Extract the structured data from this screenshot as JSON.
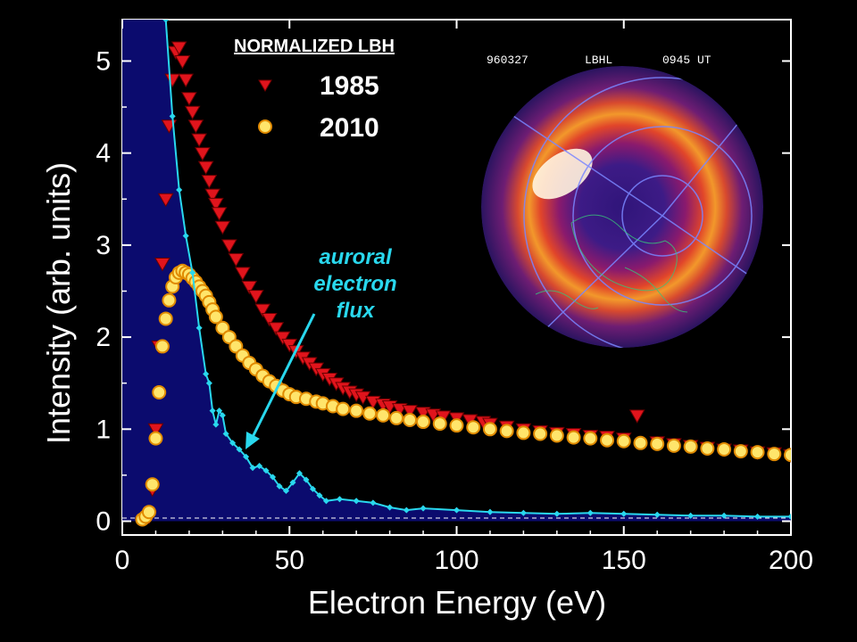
{
  "chart_data": {
    "type": "scatter",
    "xlabel": "Electron Energy (eV)",
    "ylabel": "Intensity (arb. units)",
    "xlim": [
      0,
      200
    ],
    "ylim": [
      -0.15,
      5.45
    ],
    "x_ticks": [
      "0",
      "50",
      "100",
      "150",
      "200"
    ],
    "y_ticks": [
      "0",
      "1",
      "2",
      "3",
      "4",
      "5"
    ],
    "legend_title": "NORMALIZED LBH",
    "legend_position": "top-left",
    "series": [
      {
        "name": "1985",
        "marker": "triangle-down",
        "color": "#e0141c",
        "x": [
          8,
          9,
          10,
          11,
          12,
          13,
          14,
          15,
          16,
          17,
          18,
          19,
          20,
          21,
          22,
          23,
          24,
          25,
          26,
          27,
          28,
          29,
          30,
          32,
          34,
          36,
          38,
          40,
          42,
          44,
          46,
          48,
          50,
          52,
          54,
          56,
          58,
          60,
          62,
          64,
          66,
          68,
          70,
          72,
          75,
          78,
          80,
          83,
          86,
          90,
          93,
          96,
          100,
          104,
          108,
          110,
          115,
          120,
          125,
          130,
          135,
          140,
          145,
          150,
          154,
          160,
          165,
          170,
          175,
          180,
          185,
          190,
          195,
          200
        ],
        "values": [
          0.05,
          0.35,
          1.0,
          1.9,
          2.8,
          3.5,
          4.3,
          4.8,
          5.1,
          5.15,
          5.0,
          4.8,
          4.6,
          4.45,
          4.3,
          4.15,
          4.0,
          3.85,
          3.7,
          3.55,
          3.45,
          3.35,
          3.2,
          3.0,
          2.85,
          2.7,
          2.55,
          2.45,
          2.3,
          2.2,
          2.1,
          2.0,
          1.92,
          1.85,
          1.78,
          1.72,
          1.66,
          1.6,
          1.55,
          1.5,
          1.45,
          1.41,
          1.38,
          1.35,
          1.3,
          1.27,
          1.25,
          1.22,
          1.2,
          1.18,
          1.16,
          1.14,
          1.12,
          1.1,
          1.08,
          1.06,
          1.03,
          1.0,
          0.98,
          0.96,
          0.95,
          0.93,
          0.92,
          0.9,
          1.15,
          0.86,
          0.84,
          0.82,
          0.8,
          0.78,
          0.77,
          0.75,
          0.74,
          0.72
        ]
      },
      {
        "name": "2010",
        "marker": "circle",
        "color": "#f7a21b",
        "x": [
          6,
          7,
          8,
          9,
          10,
          11,
          12,
          13,
          14,
          15,
          16,
          17,
          18,
          19,
          20,
          21,
          22,
          23,
          24,
          25,
          26,
          27,
          28,
          30,
          32,
          34,
          36,
          38,
          40,
          42,
          44,
          46,
          48,
          50,
          52,
          55,
          58,
          60,
          63,
          66,
          70,
          74,
          78,
          82,
          86,
          90,
          95,
          100,
          105,
          110,
          115,
          120,
          125,
          130,
          135,
          140,
          145,
          150,
          155,
          160,
          165,
          170,
          175,
          180,
          185,
          190,
          195,
          200
        ],
        "values": [
          0.02,
          0.05,
          0.1,
          0.4,
          0.9,
          1.4,
          1.9,
          2.2,
          2.4,
          2.55,
          2.65,
          2.7,
          2.72,
          2.7,
          2.68,
          2.64,
          2.6,
          2.55,
          2.5,
          2.45,
          2.38,
          2.3,
          2.22,
          2.1,
          2.0,
          1.9,
          1.8,
          1.72,
          1.65,
          1.58,
          1.52,
          1.47,
          1.42,
          1.38,
          1.35,
          1.33,
          1.3,
          1.28,
          1.25,
          1.22,
          1.2,
          1.17,
          1.15,
          1.12,
          1.1,
          1.08,
          1.06,
          1.04,
          1.02,
          1.0,
          0.98,
          0.96,
          0.95,
          0.93,
          0.91,
          0.9,
          0.88,
          0.87,
          0.85,
          0.84,
          0.82,
          0.81,
          0.79,
          0.78,
          0.76,
          0.75,
          0.73,
          0.72
        ]
      },
      {
        "name": "auroral electron flux",
        "marker": "line",
        "color": "#29d8ee",
        "x": [
          13,
          15,
          17,
          19,
          21,
          23,
          25,
          26,
          27,
          28,
          29,
          30,
          31,
          33,
          35,
          37,
          39,
          41,
          43,
          45,
          47,
          49,
          51,
          53,
          55,
          57,
          59,
          61,
          65,
          70,
          75,
          80,
          85,
          90,
          100,
          110,
          120,
          130,
          140,
          150,
          160,
          170,
          180,
          190,
          200
        ],
        "values": [
          5.45,
          4.4,
          3.6,
          3.1,
          2.7,
          2.1,
          1.6,
          1.5,
          1.2,
          1.05,
          1.2,
          1.15,
          0.95,
          0.85,
          0.78,
          0.7,
          0.58,
          0.6,
          0.55,
          0.48,
          0.38,
          0.33,
          0.42,
          0.52,
          0.45,
          0.35,
          0.28,
          0.22,
          0.24,
          0.22,
          0.2,
          0.15,
          0.12,
          0.14,
          0.12,
          0.1,
          0.09,
          0.08,
          0.09,
          0.08,
          0.07,
          0.06,
          0.06,
          0.05,
          0.05
        ]
      }
    ],
    "annotation": {
      "lines": [
        "auroral",
        "electron",
        "flux"
      ]
    },
    "inset": {
      "header_left": "960327",
      "header_mid": "LBHL",
      "header_right": "0945 UT"
    }
  }
}
